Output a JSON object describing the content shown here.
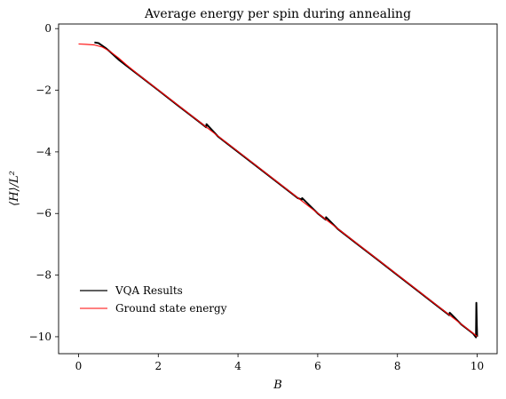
{
  "chart_data": {
    "type": "line",
    "title": "Average energy per spin during annealing",
    "xlabel": "B",
    "ylabel": "⟨H⟩/L²",
    "xlim": [
      -0.5,
      10.5
    ],
    "ylim": [
      -10.55,
      0.15
    ],
    "xticks": [
      0,
      2,
      4,
      6,
      8,
      10
    ],
    "yticks": [
      0,
      -2,
      -4,
      -6,
      -8,
      -10
    ],
    "xtick_labels": [
      "0",
      "2",
      "4",
      "6",
      "8",
      "10"
    ],
    "ytick_labels": [
      "0",
      "−2",
      "−4",
      "−6",
      "−8",
      "−10"
    ],
    "grid": false,
    "legend_position": "lower-left",
    "series": [
      {
        "name": "VQA Results",
        "color": "#000000",
        "x": [
          0.4,
          0.5,
          0.6,
          0.7,
          0.8,
          1.0,
          1.2,
          1.5,
          2.0,
          2.5,
          3.0,
          3.2,
          3.21,
          3.5,
          4.0,
          4.5,
          5.0,
          5.5,
          5.6,
          5.61,
          6.0,
          6.2,
          6.21,
          6.5,
          7.0,
          7.5,
          8.0,
          8.5,
          9.0,
          9.3,
          9.31,
          9.6,
          9.8,
          9.9,
          9.97,
          9.98,
          9.99,
          10.0
        ],
        "y": [
          -0.45,
          -0.47,
          -0.56,
          -0.65,
          -0.76,
          -1.0,
          -1.2,
          -1.5,
          -2.0,
          -2.5,
          -3.0,
          -3.2,
          -3.1,
          -3.5,
          -4.0,
          -4.5,
          -5.0,
          -5.5,
          -5.55,
          -5.5,
          -6.0,
          -6.2,
          -6.12,
          -6.5,
          -7.0,
          -7.5,
          -8.0,
          -8.5,
          -9.0,
          -9.3,
          -9.22,
          -9.6,
          -9.8,
          -9.9,
          -10.02,
          -8.9,
          -9.6,
          -10.0
        ]
      },
      {
        "name": "Ground state energy",
        "color": "#ff0000",
        "x": [
          0,
          0.2,
          0.4,
          0.6,
          0.8,
          1.0,
          1.2,
          1.5,
          2.0,
          3.0,
          4.0,
          5.0,
          6.0,
          7.0,
          8.0,
          9.0,
          10.0
        ],
        "y": [
          -0.5,
          -0.51,
          -0.53,
          -0.6,
          -0.75,
          -0.95,
          -1.17,
          -1.49,
          -1.99,
          -2.99,
          -3.99,
          -4.99,
          -5.99,
          -6.99,
          -7.99,
          -8.99,
          -9.99
        ]
      }
    ]
  }
}
